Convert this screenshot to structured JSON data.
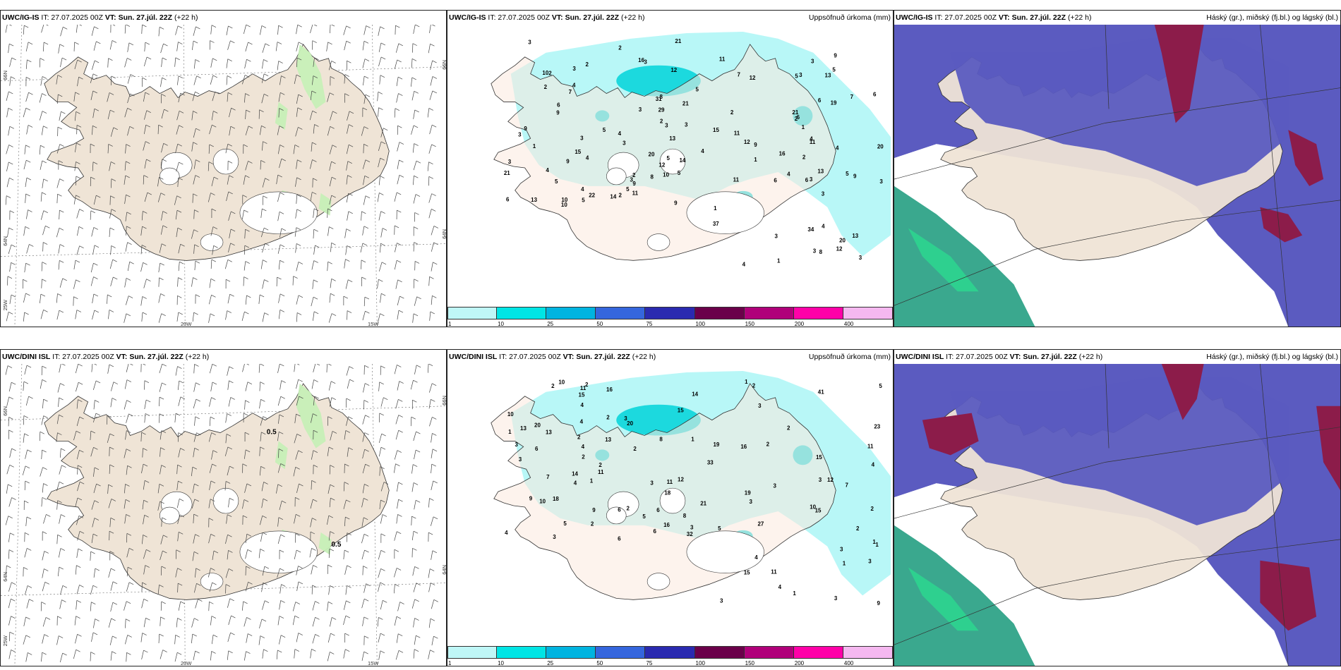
{
  "rows": [
    {
      "wind": {
        "model": "UWC/IG-IS",
        "it_label": "IT: 27.07.2025 00Z",
        "vt_label": "VT: Sun. 27.júl. 22Z",
        "step": "(+22 h)",
        "right": ""
      },
      "precip": {
        "model": "UWC/IG-IS",
        "it_label": "IT: 27.07.2025 00Z",
        "vt_label": "VT: Sun. 27.júl. 22Z",
        "step": "(+22 h)",
        "right": "Uppsöfnuð úrkoma (mm)"
      },
      "cloud": {
        "model": "UWC/IG-IS",
        "it_label": "IT: 27.07.2025 00Z",
        "vt_label": "VT: Sun. 27.júl. 22Z",
        "step": "(+22 h)",
        "right": "Háský (gr.), miðský (fj.bl.) og lágský (bl.)"
      },
      "contour_labels": [],
      "precip_values": [
        "6",
        "2",
        "4",
        "2",
        "7",
        "9",
        "15",
        "2",
        "10",
        "5",
        "4",
        "4",
        "2",
        "12",
        "22",
        "16",
        "13",
        "13",
        "3",
        "3",
        "31",
        "6",
        "6",
        "2",
        "4",
        "20",
        "5",
        "12",
        "3",
        "34",
        "37",
        "19",
        "9",
        "8",
        "21",
        "9",
        "14",
        "4",
        "12",
        "11",
        "3",
        "10",
        "13",
        "15",
        "16",
        "20",
        "9",
        "10",
        "6",
        "8",
        "14",
        "3",
        "21",
        "7",
        "8",
        "11",
        "10",
        "6",
        "11",
        "4",
        "13",
        "5",
        "3",
        "21",
        "7",
        "3",
        "3",
        "12",
        "20",
        "2",
        "5",
        "13",
        "6",
        "11",
        "4",
        "29",
        "21",
        "3",
        "4",
        "4",
        "2",
        "3",
        "12",
        "3",
        "5",
        "9",
        "11",
        "9",
        "3",
        "2",
        "1",
        "1",
        "3",
        "5",
        "2",
        "3",
        "1",
        "2",
        "5",
        "9",
        "3",
        "6",
        "3",
        "1",
        "4",
        "5",
        "3",
        "9",
        "5",
        "1",
        "5",
        "3",
        "4",
        "3"
      ]
    },
    {
      "wind": {
        "model": "UWC/DINI ISL",
        "it_label": "IT: 27.07.2025 00Z",
        "vt_label": "VT: Sun. 27.júl. 22Z",
        "step": "(+22 h)",
        "right": ""
      },
      "precip": {
        "model": "UWC/DINI ISL",
        "it_label": "IT: 27.07.2025 00Z",
        "vt_label": "VT: Sun. 27.júl. 22Z",
        "step": "(+22 h)",
        "right": "Uppsöfnuð úrkoma (mm)"
      },
      "cloud": {
        "model": "UWC/DINI ISL",
        "it_label": "IT: 27.07.2025 00Z",
        "vt_label": "VT: Sun. 27.júl. 22Z",
        "step": "(+22 h)",
        "right": "Háský (gr.), miðský (fj.bl.) og lágský (bl.)"
      },
      "contour_labels": [
        "0.5",
        "0.5"
      ],
      "precip_values": [
        "1",
        "2",
        "3",
        "2",
        "1",
        "4",
        "3",
        "4",
        "6",
        "3",
        "5",
        "20",
        "19",
        "18",
        "23",
        "32",
        "15",
        "15",
        "12",
        "4",
        "4",
        "3",
        "16",
        "11",
        "11",
        "10",
        "11",
        "9",
        "10",
        "1",
        "3",
        "27",
        "13",
        "18",
        "10",
        "11",
        "33",
        "7",
        "20",
        "13",
        "7",
        "9",
        "8",
        "13",
        "14",
        "2",
        "4",
        "3",
        "2",
        "5",
        "3",
        "9",
        "6",
        "6",
        "3",
        "16",
        "3",
        "8",
        "12",
        "15",
        "2",
        "3",
        "2",
        "6",
        "5",
        "15",
        "14",
        "16",
        "4",
        "1",
        "3",
        "21",
        "19",
        "3",
        "4",
        "10",
        "11",
        "6",
        "2",
        "3",
        "2",
        "41",
        "15",
        "5",
        "4",
        "1",
        "1",
        "2",
        "2",
        "2",
        "1",
        "3",
        "2",
        "2",
        "2",
        "1"
      ]
    }
  ],
  "axis_labels": {
    "lon_left": "20W",
    "lon_right": "15W",
    "lat_upper": "66N",
    "lat_lower": "64N",
    "lon_corner": "25W"
  },
  "colorbar": {
    "ticks": [
      "1",
      "10",
      "25",
      "50",
      "75",
      "100",
      "150",
      "200",
      "400"
    ],
    "colors": [
      "#bff7f7",
      "#00e5e5",
      "#00b4e0",
      "#3566dd",
      "#2a2ab0",
      "#6a004a",
      "#b0007a",
      "#ff00a8",
      "#f5b8f0"
    ]
  },
  "colors": {
    "land": "#efe4d6",
    "land_precip": "#fbeadf",
    "precip_light": "#b8f7f7",
    "precip_mid": "#1cd9de",
    "wind_green": "#c7f0b8",
    "high_cloud": "#5b5bc0",
    "mid_cloud": "#8c1c4a",
    "low_cloud": "#3aa88e",
    "coast": "#333333"
  }
}
